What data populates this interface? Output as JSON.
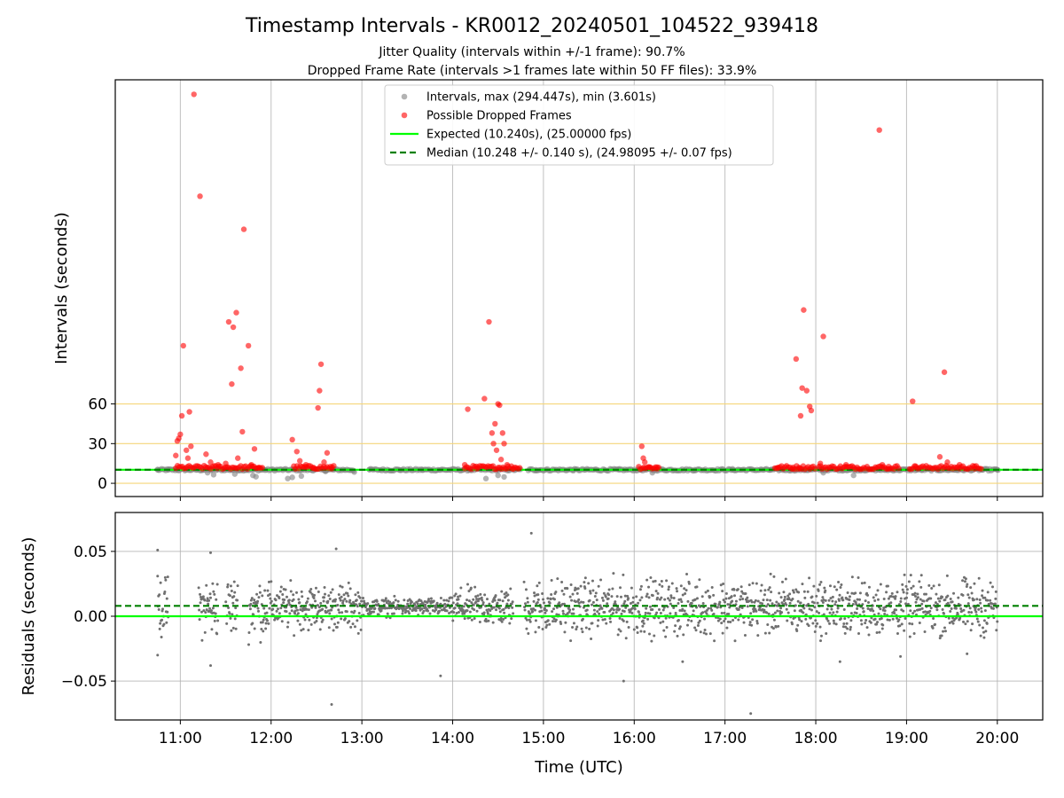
{
  "chart_data": {
    "type": "scatter",
    "title": "Timestamp Intervals - KR0012_20240501_104522_939418",
    "subtitle_lines": [
      "Jitter Quality (intervals within +/-1 frame): 90.7%",
      "Dropped Frame Rate (intervals >1 frames late within 50 FF files): 33.9%"
    ],
    "xlabel": "Time (UTC)",
    "x_ticks": [
      "11:00",
      "12:00",
      "13:00",
      "14:00",
      "15:00",
      "16:00",
      "17:00",
      "18:00",
      "19:00",
      "20:00"
    ],
    "x_range": [
      "10:17",
      "20:30"
    ],
    "grid": "vertical lines",
    "panels": [
      {
        "name": "intervals",
        "ylabel": "Intervals (seconds)",
        "y_ticks": [
          0,
          30,
          60
        ],
        "y_range": [
          -10,
          305
        ],
        "reference_lines": [
          0,
          30,
          60
        ],
        "reference_line_color": "#f5d67a",
        "legend_position": "upper center",
        "legend": [
          "Intervals, max (294.447s), min (3.601s)",
          "Possible Dropped Frames",
          "Expected (10.240s), (25.00000 fps)",
          "Median (10.248 +/- 0.140 s), (24.98095 +/- 0.07 fps)"
        ],
        "series": [
          {
            "name": "Intervals, max (294.447s), min (3.601s)",
            "color": "#808080",
            "points": [
              {
                "x": "10:45",
                "y": 10.2
              },
              {
                "x": "10:52",
                "y": 10.1
              },
              {
                "x": "11:18",
                "y": 8.0
              },
              {
                "x": "11:22",
                "y": 6.5
              },
              {
                "x": "11:36",
                "y": 7.0
              },
              {
                "x": "11:40",
                "y": 10.5
              },
              {
                "x": "11:48",
                "y": 6.0
              },
              {
                "x": "11:50",
                "y": 5.0
              },
              {
                "x": "12:11",
                "y": 3.6
              },
              {
                "x": "12:14",
                "y": 4.5
              },
              {
                "x": "12:20",
                "y": 5.5
              },
              {
                "x": "12:36",
                "y": 9.0
              },
              {
                "x": "12:55",
                "y": 8.5
              },
              {
                "x": "13:05",
                "y": 10.5
              },
              {
                "x": "13:25",
                "y": 10.2
              },
              {
                "x": "13:40",
                "y": 10.3
              },
              {
                "x": "14:22",
                "y": 3.6
              },
              {
                "x": "14:30",
                "y": 6.0
              },
              {
                "x": "14:34",
                "y": 4.8
              },
              {
                "x": "14:55",
                "y": 10.2
              },
              {
                "x": "15:20",
                "y": 10.2
              },
              {
                "x": "15:50",
                "y": 10.1
              },
              {
                "x": "16:12",
                "y": 8.0
              },
              {
                "x": "16:40",
                "y": 10.3
              },
              {
                "x": "17:05",
                "y": 10.2
              },
              {
                "x": "17:30",
                "y": 10.2
              },
              {
                "x": "18:05",
                "y": 8.0
              },
              {
                "x": "18:25",
                "y": 6.0
              },
              {
                "x": "18:45",
                "y": 10.2
              },
              {
                "x": "19:10",
                "y": 10.2
              },
              {
                "x": "19:50",
                "y": 10.2
              },
              {
                "x": "20:00",
                "y": 10.3
              }
            ]
          },
          {
            "name": "Possible Dropped Frames",
            "color": "#ff0000",
            "points": [
              {
                "x": "10:57",
                "y": 21
              },
              {
                "x": "10:58",
                "y": 32
              },
              {
                "x": "10:59",
                "y": 34
              },
              {
                "x": "11:00",
                "y": 37
              },
              {
                "x": "11:01",
                "y": 51
              },
              {
                "x": "11:02",
                "y": 104
              },
              {
                "x": "11:04",
                "y": 25
              },
              {
                "x": "11:05",
                "y": 19
              },
              {
                "x": "11:06",
                "y": 54
              },
              {
                "x": "11:07",
                "y": 28
              },
              {
                "x": "11:09",
                "y": 294
              },
              {
                "x": "11:13",
                "y": 217
              },
              {
                "x": "11:17",
                "y": 22
              },
              {
                "x": "11:20",
                "y": 16
              },
              {
                "x": "11:25",
                "y": 14
              },
              {
                "x": "11:30",
                "y": 15
              },
              {
                "x": "11:32",
                "y": 122
              },
              {
                "x": "11:34",
                "y": 75
              },
              {
                "x": "11:35",
                "y": 118
              },
              {
                "x": "11:37",
                "y": 129
              },
              {
                "x": "11:38",
                "y": 19
              },
              {
                "x": "11:40",
                "y": 87
              },
              {
                "x": "11:41",
                "y": 39
              },
              {
                "x": "11:42",
                "y": 192
              },
              {
                "x": "11:45",
                "y": 104
              },
              {
                "x": "11:47",
                "y": 14
              },
              {
                "x": "11:49",
                "y": 26
              },
              {
                "x": "11:52",
                "y": 12
              },
              {
                "x": "12:14",
                "y": 33
              },
              {
                "x": "12:17",
                "y": 24
              },
              {
                "x": "12:19",
                "y": 17
              },
              {
                "x": "12:23",
                "y": 14
              },
              {
                "x": "12:28",
                "y": 12
              },
              {
                "x": "12:31",
                "y": 57
              },
              {
                "x": "12:32",
                "y": 70
              },
              {
                "x": "12:33",
                "y": 90
              },
              {
                "x": "12:35",
                "y": 16
              },
              {
                "x": "12:37",
                "y": 23
              },
              {
                "x": "12:40",
                "y": 11
              },
              {
                "x": "14:08",
                "y": 14
              },
              {
                "x": "14:10",
                "y": 56
              },
              {
                "x": "14:16",
                "y": 11
              },
              {
                "x": "14:21",
                "y": 64
              },
              {
                "x": "14:24",
                "y": 122
              },
              {
                "x": "14:26",
                "y": 38
              },
              {
                "x": "14:27",
                "y": 30
              },
              {
                "x": "14:28",
                "y": 45
              },
              {
                "x": "14:29",
                "y": 25
              },
              {
                "x": "14:30",
                "y": 60
              },
              {
                "x": "14:31",
                "y": 59
              },
              {
                "x": "14:32",
                "y": 18
              },
              {
                "x": "14:33",
                "y": 38
              },
              {
                "x": "14:34",
                "y": 30
              },
              {
                "x": "14:36",
                "y": 14
              },
              {
                "x": "14:40",
                "y": 11
              },
              {
                "x": "16:05",
                "y": 28
              },
              {
                "x": "16:06",
                "y": 19
              },
              {
                "x": "16:07",
                "y": 16
              },
              {
                "x": "16:10",
                "y": 12
              },
              {
                "x": "16:15",
                "y": 11
              },
              {
                "x": "17:35",
                "y": 12
              },
              {
                "x": "17:45",
                "y": 11
              },
              {
                "x": "17:47",
                "y": 94
              },
              {
                "x": "17:49",
                "y": 12
              },
              {
                "x": "17:50",
                "y": 51
              },
              {
                "x": "17:51",
                "y": 72
              },
              {
                "x": "17:52",
                "y": 131
              },
              {
                "x": "17:54",
                "y": 70
              },
              {
                "x": "17:56",
                "y": 58
              },
              {
                "x": "17:57",
                "y": 55
              },
              {
                "x": "18:03",
                "y": 15
              },
              {
                "x": "18:05",
                "y": 111
              },
              {
                "x": "18:20",
                "y": 14
              },
              {
                "x": "18:42",
                "y": 267
              },
              {
                "x": "18:44",
                "y": 14
              },
              {
                "x": "18:48",
                "y": 11
              },
              {
                "x": "19:04",
                "y": 62
              },
              {
                "x": "19:06",
                "y": 13
              },
              {
                "x": "19:22",
                "y": 20
              },
              {
                "x": "19:25",
                "y": 84
              },
              {
                "x": "19:27",
                "y": 16
              },
              {
                "x": "19:35",
                "y": 14
              },
              {
                "x": "19:45",
                "y": 11
              }
            ]
          },
          {
            "name": "Expected (10.240s), (25.00000 fps)",
            "color": "#00ff00",
            "style": "solid",
            "y": 10.24
          },
          {
            "name": "Median (10.248 +/- 0.140 s), (24.98095 +/- 0.07 fps)",
            "color": "#008000",
            "style": "dashed",
            "y": 10.248
          }
        ]
      },
      {
        "name": "residuals",
        "ylabel": "Residuals (seconds)",
        "y_ticks": [
          "0.05",
          "0.00",
          "−0.05"
        ],
        "y_range": [
          -0.08,
          0.08
        ],
        "grid": "horizontal and vertical lines",
        "reference_lines": [
          {
            "name": "expected",
            "y": 0.0,
            "color": "#00ff00",
            "style": "solid"
          },
          {
            "name": "median",
            "y": 0.008,
            "color": "#008000",
            "style": "dashed"
          }
        ],
        "series": [
          {
            "name": "residuals",
            "color": "#707070",
            "x_range": [
              "10:45",
              "20:00"
            ],
            "typical_y_range": [
              -0.03,
              0.04
            ],
            "outliers": [
              {
                "x": "10:45",
                "y": 0.051
              },
              {
                "x": "10:45",
                "y": -0.03
              },
              {
                "x": "11:20",
                "y": 0.049
              },
              {
                "x": "11:20",
                "y": -0.038
              },
              {
                "x": "12:40",
                "y": -0.068
              },
              {
                "x": "12:43",
                "y": 0.052
              },
              {
                "x": "13:52",
                "y": -0.046
              },
              {
                "x": "14:52",
                "y": 0.064
              },
              {
                "x": "15:53",
                "y": -0.05
              },
              {
                "x": "16:32",
                "y": -0.035
              },
              {
                "x": "17:17",
                "y": -0.075
              },
              {
                "x": "18:16",
                "y": -0.035
              },
              {
                "x": "18:56",
                "y": -0.031
              },
              {
                "x": "19:40",
                "y": -0.029
              }
            ]
          }
        ]
      }
    ]
  }
}
